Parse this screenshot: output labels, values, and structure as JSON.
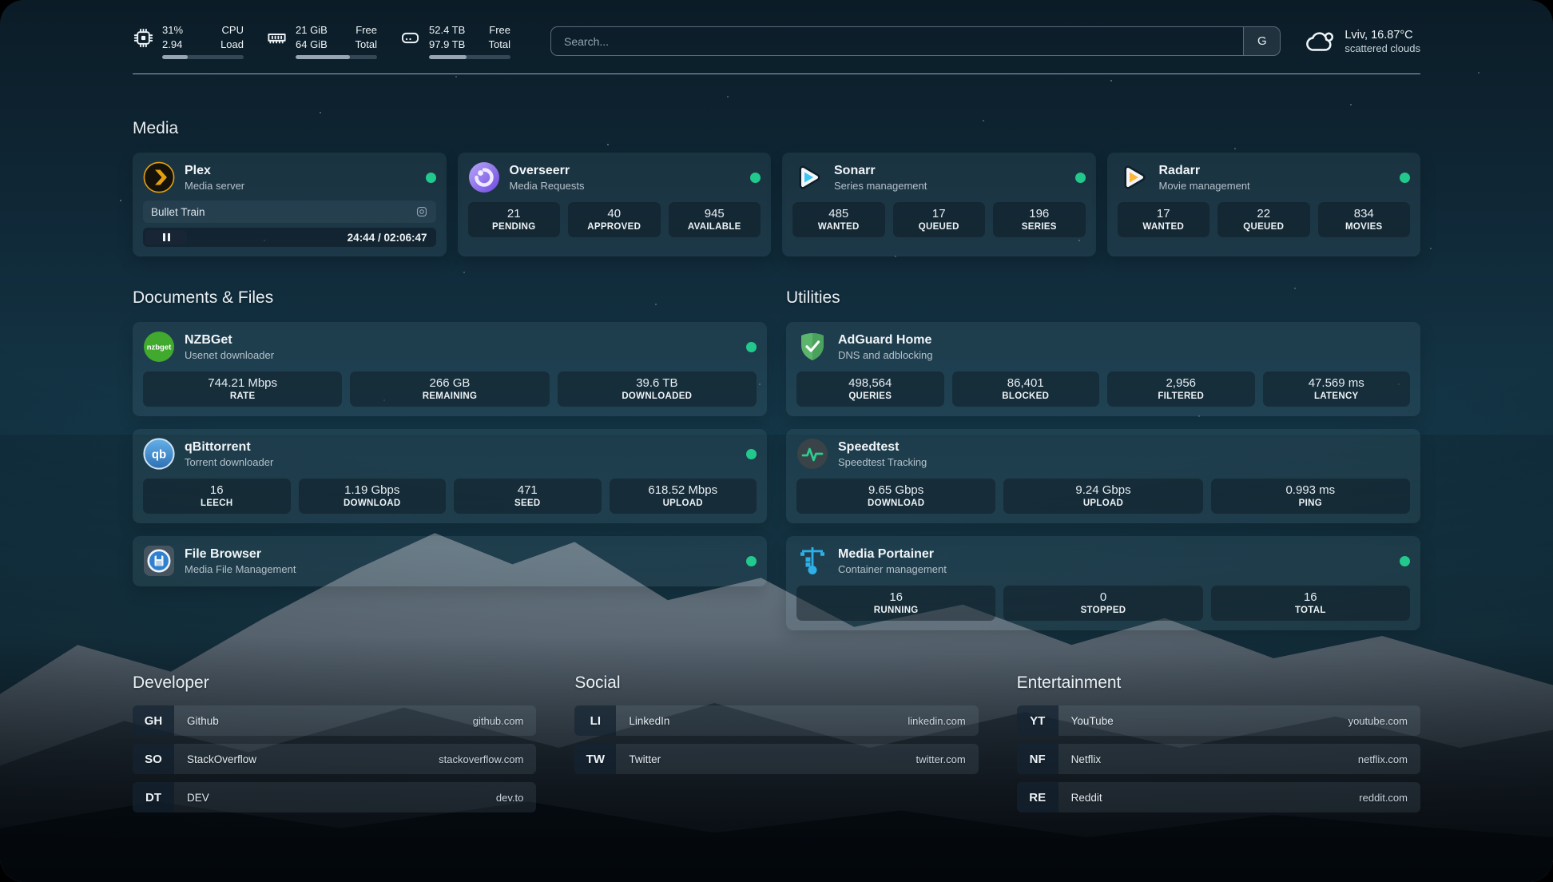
{
  "colors": {
    "status_online": "#22c98d",
    "plex_accent": "#e5a00d"
  },
  "topbar": {
    "resources": [
      {
        "icon": "cpu-icon",
        "value_top": "31%",
        "label_top": "CPU",
        "value_bottom": "2.94",
        "label_bottom": "Load",
        "progress_percent": 31
      },
      {
        "icon": "memory-icon",
        "value_top": "21 GiB",
        "label_top": "Free",
        "value_bottom": "64 GiB",
        "label_bottom": "Total",
        "progress_percent": 67
      },
      {
        "icon": "disk-icon",
        "value_top": "52.4 TB",
        "label_top": "Free",
        "value_bottom": "97.9 TB",
        "label_bottom": "Total",
        "progress_percent": 46
      }
    ],
    "search": {
      "placeholder": "Search...",
      "button_label": "G"
    },
    "weather": {
      "location_temp": "Lviv, 16.87°C",
      "condition": "scattered clouds"
    }
  },
  "sections": {
    "media": {
      "title": "Media",
      "cards": [
        {
          "id": "plex",
          "icon": "plex-icon",
          "name": "Plex",
          "description": "Media server",
          "status_dot": true,
          "player": {
            "title": "Bullet Train",
            "time": "24:44 / 02:06:47"
          }
        },
        {
          "id": "overseerr",
          "icon": "overseerr-icon",
          "name": "Overseerr",
          "description": "Media Requests",
          "status_dot": true,
          "stats": [
            {
              "value": "21",
              "label": "PENDING"
            },
            {
              "value": "40",
              "label": "APPROVED"
            },
            {
              "value": "945",
              "label": "AVAILABLE"
            }
          ]
        },
        {
          "id": "sonarr",
          "icon": "sonarr-icon",
          "name": "Sonarr",
          "description": "Series management",
          "status_dot": true,
          "stats": [
            {
              "value": "485",
              "label": "WANTED"
            },
            {
              "value": "17",
              "label": "QUEUED"
            },
            {
              "value": "196",
              "label": "SERIES"
            }
          ]
        },
        {
          "id": "radarr",
          "icon": "radarr-icon",
          "name": "Radarr",
          "description": "Movie management",
          "status_dot": true,
          "stats": [
            {
              "value": "17",
              "label": "WANTED"
            },
            {
              "value": "22",
              "label": "QUEUED"
            },
            {
              "value": "834",
              "label": "MOVIES"
            }
          ]
        }
      ]
    },
    "documents": {
      "title": "Documents & Files",
      "cards": [
        {
          "id": "nzbget",
          "icon": "nzbget-icon",
          "name": "NZBGet",
          "description": "Usenet downloader",
          "status_dot": true,
          "stats": [
            {
              "value": "744.21 Mbps",
              "label": "RATE"
            },
            {
              "value": "266 GB",
              "label": "REMAINING"
            },
            {
              "value": "39.6 TB",
              "label": "DOWNLOADED"
            }
          ]
        },
        {
          "id": "qbittorrent",
          "icon": "qbittorrent-icon",
          "name": "qBittorrent",
          "description": "Torrent downloader",
          "status_dot": true,
          "stats": [
            {
              "value": "16",
              "label": "LEECH"
            },
            {
              "value": "1.19 Gbps",
              "label": "DOWNLOAD"
            },
            {
              "value": "471",
              "label": "SEED"
            },
            {
              "value": "618.52 Mbps",
              "label": "UPLOAD"
            }
          ]
        },
        {
          "id": "filebrowser",
          "icon": "filebrowser-icon",
          "name": "File Browser",
          "description": "Media File Management",
          "status_dot": true,
          "stats": []
        }
      ]
    },
    "utilities": {
      "title": "Utilities",
      "cards": [
        {
          "id": "adguard",
          "icon": "adguard-icon",
          "name": "AdGuard Home",
          "description": "DNS and adblocking",
          "status_dot": false,
          "stats": [
            {
              "value": "498,564",
              "label": "QUERIES"
            },
            {
              "value": "86,401",
              "label": "BLOCKED"
            },
            {
              "value": "2,956",
              "label": "FILTERED"
            },
            {
              "value": "47.569 ms",
              "label": "LATENCY"
            }
          ]
        },
        {
          "id": "speedtest",
          "icon": "speedtest-icon",
          "name": "Speedtest",
          "description": "Speedtest Tracking",
          "status_dot": false,
          "stats": [
            {
              "value": "9.65 Gbps",
              "label": "DOWNLOAD"
            },
            {
              "value": "9.24 Gbps",
              "label": "UPLOAD"
            },
            {
              "value": "0.993 ms",
              "label": "PING"
            }
          ]
        },
        {
          "id": "portainer",
          "icon": "portainer-icon",
          "name": "Media Portainer",
          "description": "Container management",
          "status_dot": true,
          "stats": [
            {
              "value": "16",
              "label": "RUNNING"
            },
            {
              "value": "0",
              "label": "STOPPED"
            },
            {
              "value": "16",
              "label": "TOTAL"
            }
          ]
        }
      ]
    }
  },
  "bookmarks": [
    {
      "title": "Developer",
      "items": [
        {
          "abbr": "GH",
          "name": "Github",
          "url": "github.com"
        },
        {
          "abbr": "SO",
          "name": "StackOverflow",
          "url": "stackoverflow.com"
        },
        {
          "abbr": "DT",
          "name": "DEV",
          "url": "dev.to"
        }
      ]
    },
    {
      "title": "Social",
      "items": [
        {
          "abbr": "LI",
          "name": "LinkedIn",
          "url": "linkedin.com"
        },
        {
          "abbr": "TW",
          "name": "Twitter",
          "url": "twitter.com"
        }
      ]
    },
    {
      "title": "Entertainment",
      "items": [
        {
          "abbr": "YT",
          "name": "YouTube",
          "url": "youtube.com"
        },
        {
          "abbr": "NF",
          "name": "Netflix",
          "url": "netflix.com"
        },
        {
          "abbr": "RE",
          "name": "Reddit",
          "url": "reddit.com"
        }
      ]
    }
  ]
}
